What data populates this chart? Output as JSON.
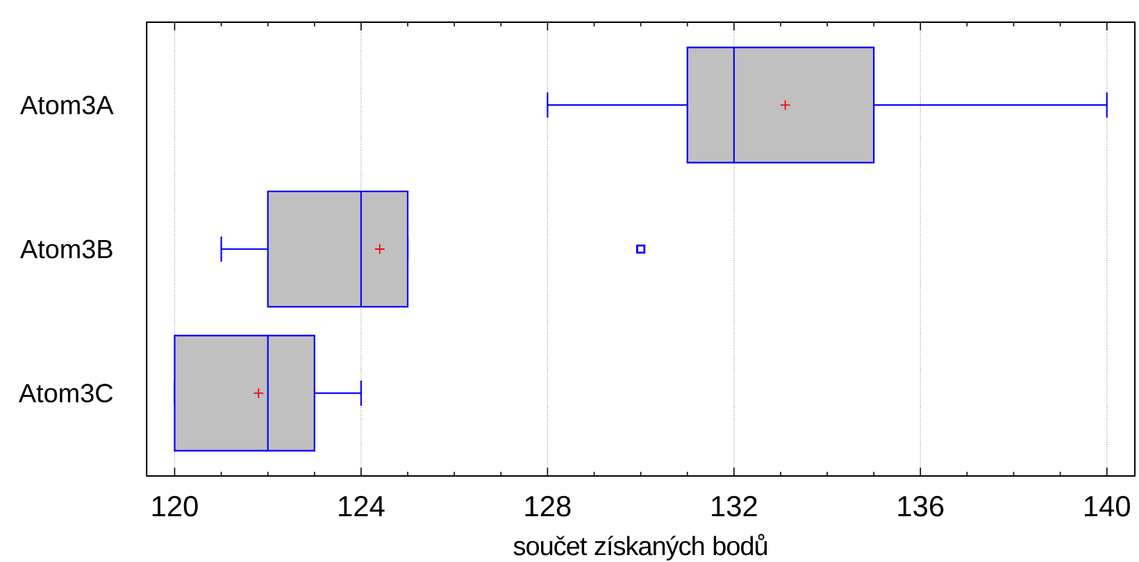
{
  "chart_data": {
    "type": "box",
    "orientation": "horizontal",
    "categories": [
      "Atom3A",
      "Atom3B",
      "Atom3C"
    ],
    "xlabel": "součet získaných bodů",
    "xlim": [
      119.4,
      140.6
    ],
    "xticks": [
      120,
      124,
      128,
      132,
      136,
      140
    ],
    "grid": "x",
    "color": "#c0c0c0",
    "boxes": [
      {
        "low": 128,
        "q1": 131,
        "median": 132,
        "q3": 135,
        "high": 140,
        "mean": 133.1
      },
      {
        "low": 121,
        "q1": 122,
        "median": 124,
        "q3": 125,
        "high": 125,
        "mean": 124.4,
        "outliers": [
          130
        ]
      },
      {
        "low": 120,
        "q1": 120,
        "median": 122,
        "q3": 123,
        "high": 124,
        "mean": 121.8
      }
    ]
  }
}
